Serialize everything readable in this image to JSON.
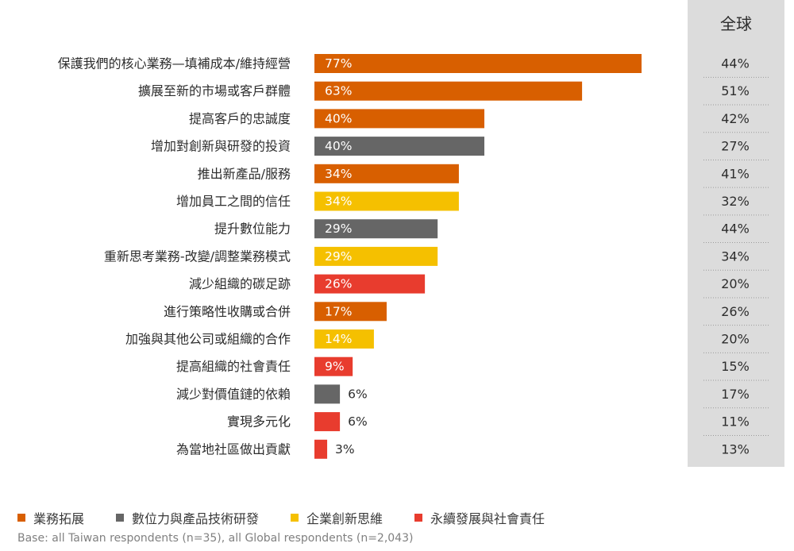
{
  "global_header": "全球",
  "legend": [
    {
      "label": "業務拓展",
      "color": "#d85f00"
    },
    {
      "label": "數位力與產品技術研發",
      "color": "#666666"
    },
    {
      "label": "企業創新思維",
      "color": "#f5c000"
    },
    {
      "label": "永續發展與社會責任",
      "color": "#e83c2e"
    }
  ],
  "footnote": "Base: all Taiwan respondents (n=35), all Global respondents (n=2,043)",
  "chart_data": {
    "type": "bar",
    "orientation": "horizontal",
    "xlim": [
      0,
      100
    ],
    "categories": [
      "保護我們的核心業務—填補成本/維持經營",
      "擴展至新的市場或客戶群體",
      "提高客戶的忠誠度",
      "增加對創新與研發的投資",
      "推出新產品/服務",
      "增加員工之間的信任",
      "提升數位能力",
      "重新思考業務-改變/調整業務模式",
      "減少組織的碳足跡",
      "進行策略性收購或合併",
      "加強與其他公司或組織的合作",
      "提高組織的社會責任",
      "減少對價值鏈的依賴",
      "實現多元化",
      "為當地社區做出貢獻"
    ],
    "values": [
      77,
      63,
      40,
      40,
      34,
      34,
      29,
      29,
      26,
      17,
      14,
      9,
      6,
      6,
      3
    ],
    "value_labels": [
      "77%",
      "63%",
      "40%",
      "40%",
      "34%",
      "34%",
      "29%",
      "29%",
      "26%",
      "17%",
      "14%",
      "9%",
      "6%",
      "6%",
      "3%"
    ],
    "bar_colors": [
      "#d85f00",
      "#d85f00",
      "#d85f00",
      "#666666",
      "#d85f00",
      "#f5c000",
      "#666666",
      "#f5c000",
      "#e83c2e",
      "#d85f00",
      "#f5c000",
      "#e83c2e",
      "#666666",
      "#e83c2e",
      "#e83c2e"
    ],
    "global_values": [
      44,
      51,
      42,
      27,
      41,
      32,
      44,
      34,
      20,
      26,
      20,
      15,
      17,
      11,
      13
    ],
    "global_labels": [
      "44%",
      "51%",
      "42%",
      "27%",
      "41%",
      "32%",
      "44%",
      "34%",
      "20%",
      "26%",
      "20%",
      "15%",
      "17%",
      "11%",
      "13%"
    ]
  }
}
